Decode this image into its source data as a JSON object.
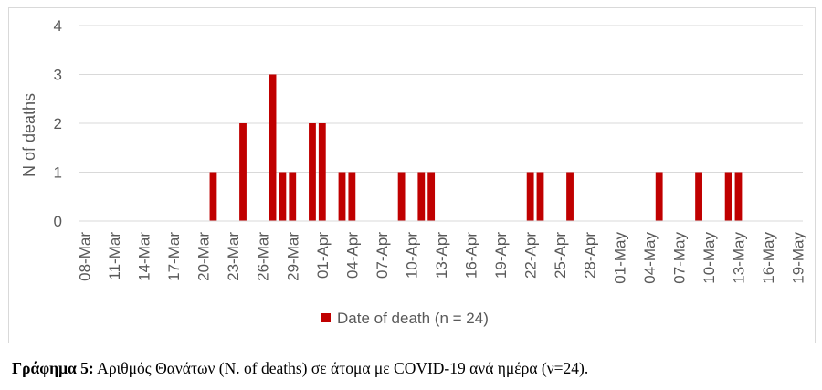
{
  "caption": {
    "lead": "Γράφημα 5:",
    "text": " Αριθμός Θανάτων (N. of deaths) σε άτομα με COVID-19 ανά ημέρα (ν=24)."
  },
  "chart_data": {
    "type": "bar",
    "title": "",
    "xlabel": "",
    "ylabel": "N of deaths",
    "ylim": [
      0,
      4
    ],
    "yticks": [
      0,
      1,
      2,
      3,
      4
    ],
    "grid": true,
    "legend_position": "bottom",
    "bar_color": "#c00000",
    "xtick_labels": [
      "08-Mar",
      "11-Mar",
      "14-Mar",
      "17-Mar",
      "20-Mar",
      "23-Mar",
      "26-Mar",
      "29-Mar",
      "01-Apr",
      "04-Apr",
      "07-Apr",
      "10-Apr",
      "13-Apr",
      "16-Apr",
      "19-Apr",
      "22-Apr",
      "25-Apr",
      "28-Apr",
      "01-May",
      "04-May",
      "07-May",
      "10-May",
      "13-May",
      "16-May",
      "19-May"
    ],
    "series": [
      {
        "name": "Date of death (n = 24)",
        "color": "#c00000",
        "points": [
          {
            "x": "21-Mar",
            "y": 1
          },
          {
            "x": "24-Mar",
            "y": 2
          },
          {
            "x": "27-Mar",
            "y": 3
          },
          {
            "x": "28-Mar",
            "y": 1
          },
          {
            "x": "29-Mar",
            "y": 1
          },
          {
            "x": "31-Mar",
            "y": 2
          },
          {
            "x": "01-Apr",
            "y": 2
          },
          {
            "x": "03-Apr",
            "y": 1
          },
          {
            "x": "04-Apr",
            "y": 1
          },
          {
            "x": "09-Apr",
            "y": 1
          },
          {
            "x": "11-Apr",
            "y": 1
          },
          {
            "x": "12-Apr",
            "y": 1
          },
          {
            "x": "22-Apr",
            "y": 1
          },
          {
            "x": "23-Apr",
            "y": 1
          },
          {
            "x": "26-Apr",
            "y": 1
          },
          {
            "x": "05-May",
            "y": 1
          },
          {
            "x": "09-May",
            "y": 1
          },
          {
            "x": "12-May",
            "y": 1
          },
          {
            "x": "13-May",
            "y": 1
          }
        ]
      }
    ]
  }
}
